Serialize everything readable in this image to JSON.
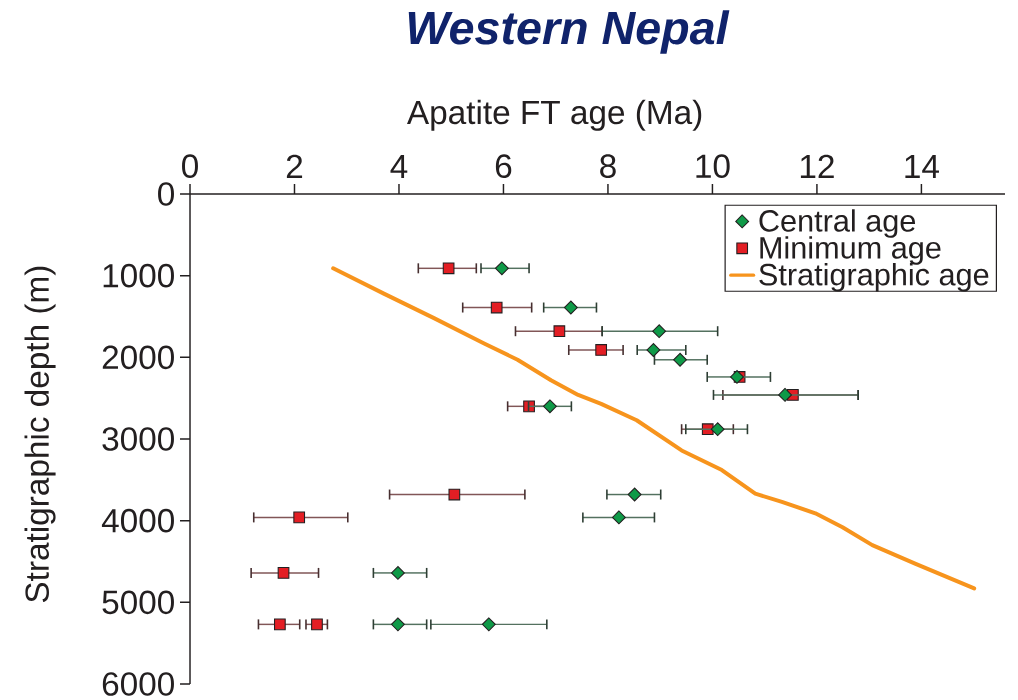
{
  "chart_data": {
    "type": "scatter",
    "title": "Western Nepal",
    "xlabel": "Apatite FT age (Ma)",
    "ylabel": "Stratigraphic depth (m)",
    "xlim": [
      0,
      15.6
    ],
    "xticks": [
      0,
      2,
      4,
      6,
      8,
      10,
      12,
      14
    ],
    "ylim": [
      6000,
      0
    ],
    "yticks": [
      0,
      1000,
      2000,
      3000,
      4000,
      5000,
      6000
    ],
    "legend": "top right",
    "series": [
      {
        "name": "Central age",
        "color": "#0f9a48",
        "marker": "diamond",
        "x": [
          5.97,
          7.29,
          8.98,
          8.87,
          9.38,
          10.47,
          11.39,
          6.89,
          10.1,
          8.51,
          8.21,
          3.98,
          3.98,
          5.72
        ],
        "values": [
          910,
          1390,
          1680,
          1910,
          2030,
          2240,
          2460,
          2600,
          2880,
          3680,
          3960,
          4640,
          5270,
          5270
        ],
        "xerrors": [
          [
            5.57,
            6.49
          ],
          [
            6.77,
            7.78
          ],
          [
            7.89,
            10.1
          ],
          [
            8.56,
            9.49
          ],
          [
            8.89,
            9.9
          ],
          [
            9.9,
            11.11
          ],
          [
            10.02,
            12.79
          ],
          [
            6.48,
            7.3
          ],
          [
            9.49,
            10.67
          ],
          [
            7.98,
            9.01
          ],
          [
            7.52,
            8.89
          ],
          [
            3.51,
            4.53
          ],
          [
            3.51,
            4.53
          ],
          [
            4.61,
            6.83
          ]
        ]
      },
      {
        "name": "Minimum age",
        "color": "#e31e24",
        "marker": "square",
        "x": [
          4.95,
          5.87,
          7.07,
          7.87,
          10.52,
          11.54,
          6.49,
          9.91,
          5.06,
          2.09,
          1.79,
          1.72,
          2.43
        ],
        "values": [
          910,
          1390,
          1680,
          1910,
          2240,
          2460,
          2600,
          2880,
          3680,
          3960,
          4640,
          5270,
          5270
        ],
        "xerrors": [
          [
            4.37,
            5.48
          ],
          [
            5.22,
            6.54
          ],
          [
            6.23,
            7.89
          ],
          [
            7.25,
            8.29
          ],
          null,
          [
            10.2,
            12.79
          ],
          [
            6.08,
            6.9
          ],
          [
            9.41,
            10.4
          ],
          [
            3.82,
            6.41
          ],
          [
            1.22,
            3.02
          ],
          [
            1.17,
            2.46
          ],
          [
            1.31,
            2.1
          ],
          [
            2.22,
            2.63
          ]
        ]
      },
      {
        "name": "Stratigraphic age",
        "type": "line",
        "color": "#f7941d",
        "marker": "none",
        "x": [
          2.74,
          3.71,
          4.67,
          5.63,
          6.27,
          6.91,
          7.43,
          7.87,
          8.55,
          9.41,
          10.18,
          10.82,
          11.33,
          11.97,
          12.49,
          13.06,
          13.89,
          15.01
        ],
        "values": [
          910,
          1220,
          1520,
          1830,
          2030,
          2280,
          2460,
          2570,
          2770,
          3140,
          3380,
          3670,
          3770,
          3910,
          4080,
          4300,
          4530,
          4830
        ]
      }
    ]
  }
}
